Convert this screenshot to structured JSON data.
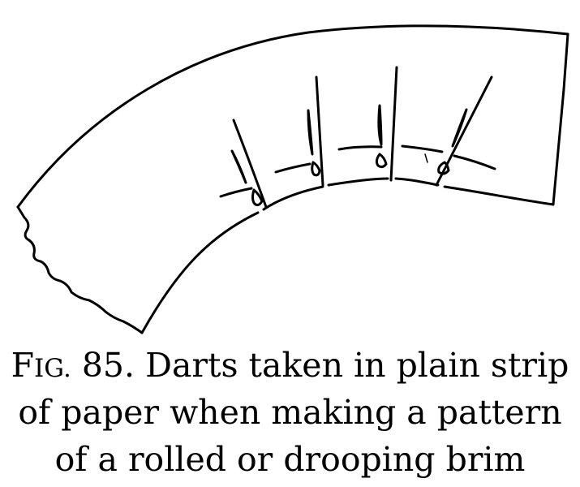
{
  "caption": {
    "fig_prefix_F": "F",
    "fig_prefix_IG": "IG.",
    "line1_rest": " 85.  Darts taken in plain strip",
    "line2": "of paper when making a pattern",
    "line3": "of a rolled or drooping brim"
  },
  "colors": {
    "ink": "#000000",
    "paper": "#ffffff"
  }
}
